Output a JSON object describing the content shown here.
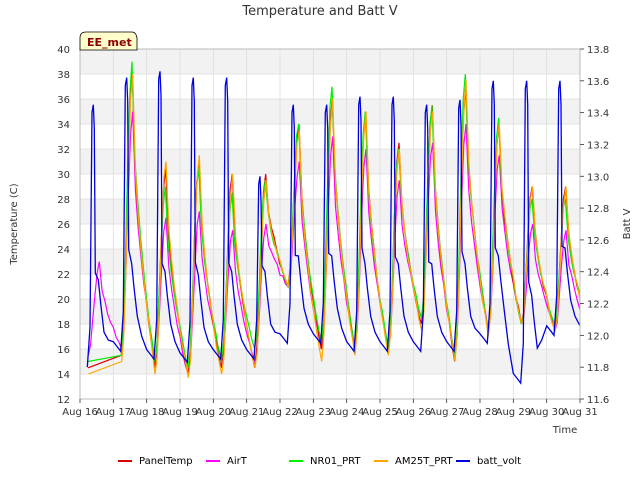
{
  "chart_data": {
    "type": "line",
    "title": "Temperature and Batt V",
    "xlabel": "Time",
    "ylabel": "Temperature (C)",
    "y2label": "Batt V",
    "site_label": "EE_met",
    "ylim": [
      12,
      40
    ],
    "y2lim": [
      11.6,
      13.8
    ],
    "xlim": [
      16,
      31
    ],
    "x_tick_labels": [
      "Aug 16",
      "Aug 17",
      "Aug 18",
      "Aug 19",
      "Aug 20",
      "Aug 21",
      "Aug 22",
      "Aug 23",
      "Aug 24",
      "Aug 25",
      "Aug 26",
      "Aug 27",
      "Aug 28",
      "Aug 29",
      "Aug 30",
      "Aug 31"
    ],
    "y_ticks": [
      12,
      14,
      16,
      18,
      20,
      22,
      24,
      26,
      28,
      30,
      32,
      34,
      36,
      38,
      40
    ],
    "y2_ticks": [
      11.6,
      11.8,
      12.0,
      12.2,
      12.4,
      12.6,
      12.8,
      13.0,
      13.2,
      13.4,
      13.6,
      13.8
    ],
    "grid": true,
    "legend_position": "bottom",
    "daily_temperature_extremes": {
      "days": [
        16,
        17,
        18,
        19,
        20,
        21,
        22,
        23,
        24,
        25,
        26,
        27,
        28,
        29,
        30
      ],
      "PanelTemp": {
        "min": [
          14.5,
          15.5,
          14.5,
          14.0,
          14.5,
          14.5,
          21.0,
          16.0,
          16.0,
          16.0,
          18.0,
          15.0,
          17.5,
          18.0,
          17.5
        ],
        "max": [
          null,
          38.0,
          30.5,
          31.0,
          30.0,
          30.0,
          34.0,
          36.0,
          35.0,
          32.5,
          35.5,
          37.0,
          34.0,
          29.0,
          29.0
        ]
      },
      "AirT": {
        "min": [
          15.5,
          16.0,
          15.0,
          14.0,
          15.0,
          15.0,
          21.0,
          16.0,
          16.0,
          16.0,
          18.5,
          15.5,
          17.5,
          18.0,
          17.5
        ],
        "max": [
          23.0,
          35.0,
          26.5,
          27.0,
          25.5,
          26.0,
          31.0,
          33.0,
          32.0,
          29.5,
          32.5,
          34.0,
          31.5,
          26.0,
          25.5
        ]
      },
      "NR01_PRT": {
        "min": [
          15.0,
          15.5,
          15.0,
          14.5,
          15.0,
          16.0,
          21.0,
          16.5,
          16.0,
          16.0,
          18.5,
          15.5,
          17.5,
          18.0,
          18.0
        ],
        "max": [
          null,
          39.0,
          29.0,
          30.5,
          28.5,
          29.5,
          34.0,
          37.0,
          35.0,
          32.0,
          35.5,
          38.0,
          34.5,
          28.0,
          28.0
        ]
      },
      "AM25T_PRT": {
        "min": [
          14.0,
          15.0,
          14.0,
          13.7,
          14.0,
          14.5,
          21.0,
          15.0,
          15.5,
          15.5,
          17.5,
          15.0,
          17.0,
          18.0,
          17.5
        ],
        "max": [
          null,
          38.0,
          31.0,
          31.5,
          30.0,
          29.5,
          33.5,
          36.0,
          35.0,
          32.0,
          35.0,
          37.5,
          34.0,
          29.0,
          29.0
        ]
      }
    },
    "daily_voltage_extremes": {
      "days": [
        16,
        17,
        18,
        19,
        20,
        21,
        22,
        23,
        24,
        25,
        26,
        27,
        28,
        29,
        30
      ],
      "min": [
        11.8,
        11.9,
        11.85,
        11.83,
        11.85,
        11.85,
        11.95,
        11.95,
        11.9,
        11.9,
        11.9,
        11.9,
        11.95,
        11.7,
        12.0
      ],
      "max": [
        13.45,
        13.62,
        13.66,
        13.62,
        13.62,
        13.0,
        13.45,
        13.45,
        13.5,
        13.5,
        13.45,
        13.48,
        13.6,
        13.6,
        13.6
      ]
    },
    "series": [
      {
        "name": "PanelTemp",
        "color": "#dd0000",
        "axis": "left"
      },
      {
        "name": "AirT",
        "color": "#ff00ff",
        "axis": "left"
      },
      {
        "name": "NR01_PRT",
        "color": "#00ee00",
        "axis": "left"
      },
      {
        "name": "AM25T_PRT",
        "color": "#ffa500",
        "axis": "left"
      },
      {
        "name": "batt_volt",
        "color": "#0000dd",
        "axis": "right"
      }
    ]
  }
}
